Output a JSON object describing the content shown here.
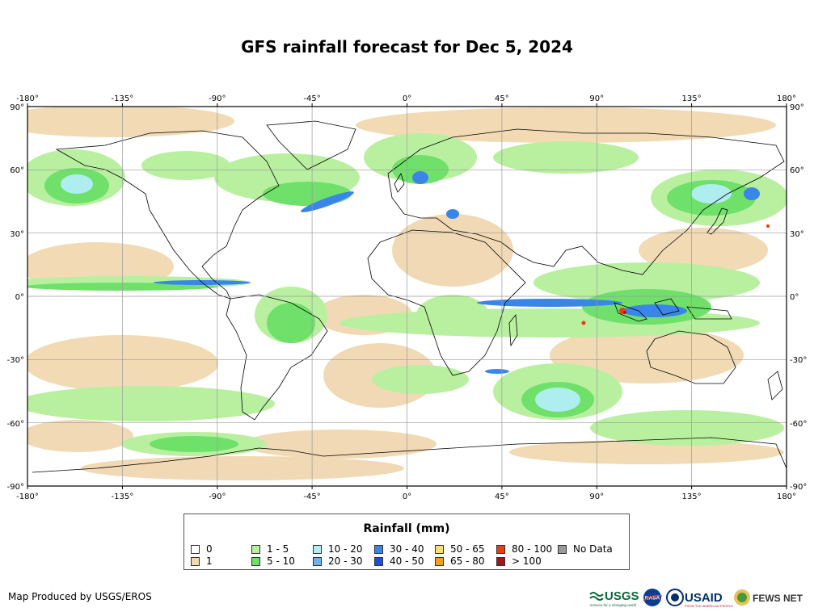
{
  "title": "GFS rainfall forecast for Dec 5, 2024",
  "axes": {
    "lon_labels": [
      "-180°",
      "-135°",
      "-90°",
      "-45°",
      "0°",
      "45°",
      "90°",
      "135°",
      "180°"
    ],
    "lat_labels": [
      "90°",
      "60°",
      "30°",
      "0°",
      "-30°",
      "-60°",
      "-90°"
    ]
  },
  "legend": {
    "title": "Rainfall (mm)",
    "items": [
      {
        "label": "0",
        "color": "#ffffff"
      },
      {
        "label": "1",
        "color": "#f0d8b0"
      },
      {
        "label": "1 - 5",
        "color": "#b8f0a0"
      },
      {
        "label": "5 - 10",
        "color": "#6fe06a"
      },
      {
        "label": "10 - 20",
        "color": "#aeeeee"
      },
      {
        "label": "20 - 30",
        "color": "#6fb0f0"
      },
      {
        "label": "30 - 40",
        "color": "#3a86e8"
      },
      {
        "label": "40 - 50",
        "color": "#1a4fd8"
      },
      {
        "label": "50 - 65",
        "color": "#f5e070"
      },
      {
        "label": "65 - 80",
        "color": "#f0a020"
      },
      {
        "label": "80 - 100",
        "color": "#f03a10"
      },
      {
        "label": "> 100",
        "color": "#a01818"
      },
      {
        "label": "No Data",
        "color": "#999999"
      }
    ]
  },
  "credit": "Map Produced by USGS/EROS",
  "logos": {
    "usgs": "USGS",
    "usgs_tagline": "science for a changing world",
    "nasa": "NASA",
    "usaid": "USAID",
    "usaid_tagline": "FROM THE AMERICAN PEOPLE",
    "fews": "FEWS NET"
  }
}
